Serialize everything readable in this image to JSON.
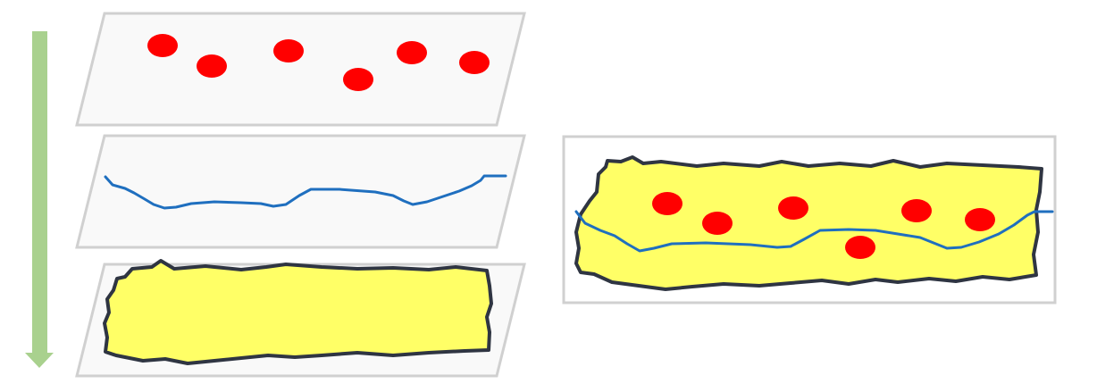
{
  "colors": {
    "background": "#ffffff",
    "layer_fill": "#f9f9f9",
    "layer_border": "#d0d0d0",
    "arrow": "#a9d18e",
    "point": "#ff0000",
    "line": "#1f6fbf",
    "polygon_fill": "#ffff66",
    "polygon_outline": "#2f3542"
  },
  "layers": [
    {
      "name": "points-layer",
      "content": "points",
      "point_count": 6
    },
    {
      "name": "line-layer",
      "content": "line"
    },
    {
      "name": "polygon-layer",
      "content": "polygon"
    }
  ],
  "overlay": {
    "content": [
      "polygon",
      "line",
      "points"
    ],
    "point_count": 6
  },
  "arrow": {
    "direction": "down"
  }
}
